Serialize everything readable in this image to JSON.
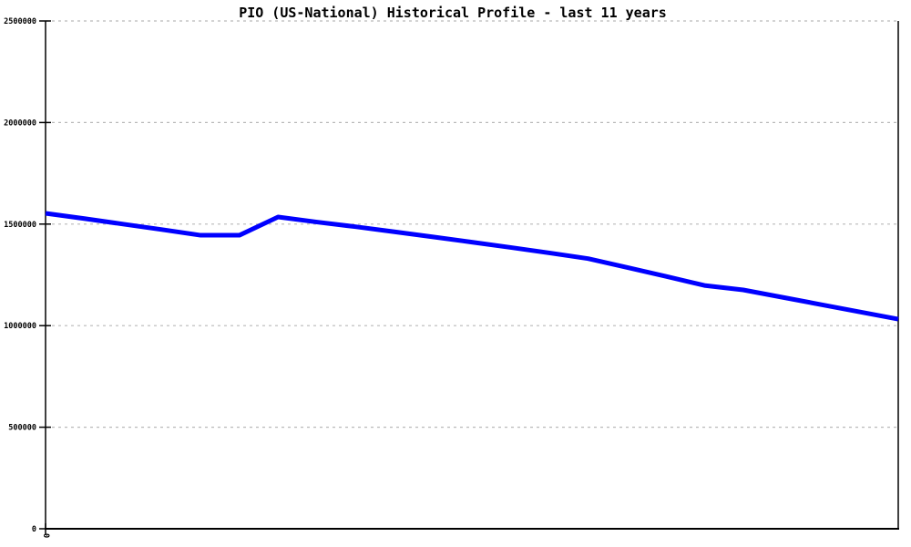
{
  "colors": {
    "background": "#ffffff",
    "line": "#0000ff",
    "grid": "#b9b9b9",
    "axis": "#000000",
    "text": "#000000"
  },
  "chart_data": {
    "type": "line",
    "title": "PIO (US-National) Historical Profile - last 11 years",
    "xlabel": "",
    "ylabel": "",
    "legend": "none",
    "grid": "horizontal-dashed",
    "ylim": [
      0,
      2500000
    ],
    "xlim": [
      0,
      22
    ],
    "y_ticks": [
      0,
      500000,
      1000000,
      1500000,
      2000000,
      2500000
    ],
    "y_tick_labels": [
      "0",
      "500000",
      "1000000",
      "1500000",
      "2000000",
      "2500000"
    ],
    "x_tick_labels": [
      "0"
    ],
    "x": [
      0,
      1,
      2,
      3,
      4,
      5,
      6,
      7,
      8,
      9,
      10,
      11,
      12,
      13,
      14,
      15,
      16,
      17,
      18,
      19,
      20,
      21,
      22
    ],
    "series": [
      {
        "name": "PIO (US-National)",
        "color": "#0000ff",
        "values": [
          1553000,
          1527000,
          1500000,
          1473000,
          1445000,
          1445000,
          1535000,
          1510000,
          1487000,
          1462000,
          1437000,
          1411000,
          1385000,
          1358000,
          1330000,
          1287000,
          1243000,
          1198000,
          1176000,
          1140000,
          1104000,
          1068000,
          1032000
        ]
      }
    ]
  }
}
